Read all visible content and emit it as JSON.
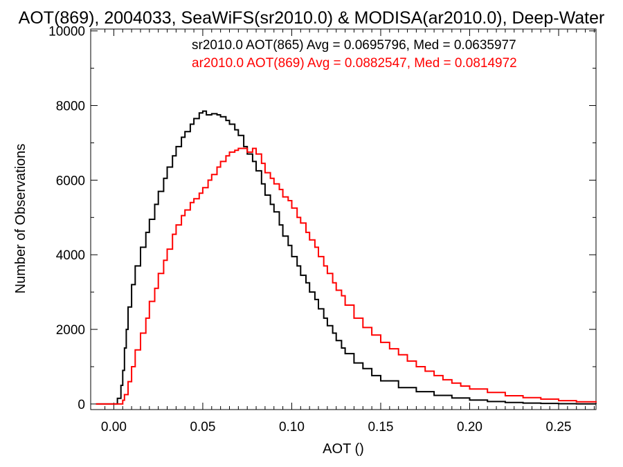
{
  "chart_data": {
    "type": "line",
    "title": "AOT(869), 2004033, SeaWiFS(sr2010.0) & MODISA(ar2010.0), Deep-Water",
    "xlabel": "AOT ()",
    "ylabel": "Number of Observations",
    "xlim": [
      -0.013,
      0.271
    ],
    "ylim": [
      -150,
      10050
    ],
    "xticks": [
      0.0,
      0.05,
      0.1,
      0.15,
      0.2,
      0.25
    ],
    "xtick_labels": [
      "0.00",
      "0.05",
      "0.10",
      "0.15",
      "0.20",
      "0.25"
    ],
    "yticks": [
      0,
      2000,
      4000,
      6000,
      8000,
      10000
    ],
    "ytick_labels": [
      "0",
      "2000",
      "4000",
      "6000",
      "8000",
      "10000"
    ],
    "grid": false,
    "legend_placement": "top-right",
    "series": [
      {
        "name": "sr2010.0 AOT(865) Avg = 0.0695796, Med = 0.0635977",
        "color": "#000000",
        "x": [
          -0.01,
          0.0,
          0.002,
          0.004,
          0.005,
          0.006,
          0.007,
          0.008,
          0.01,
          0.012,
          0.015,
          0.018,
          0.02,
          0.023,
          0.025,
          0.028,
          0.03,
          0.033,
          0.035,
          0.038,
          0.04,
          0.043,
          0.045,
          0.048,
          0.05,
          0.052,
          0.055,
          0.058,
          0.06,
          0.063,
          0.065,
          0.068,
          0.07,
          0.073,
          0.075,
          0.078,
          0.08,
          0.083,
          0.085,
          0.088,
          0.09,
          0.093,
          0.095,
          0.098,
          0.1,
          0.103,
          0.105,
          0.108,
          0.11,
          0.113,
          0.115,
          0.118,
          0.12,
          0.123,
          0.125,
          0.128,
          0.13,
          0.135,
          0.14,
          0.145,
          0.15,
          0.16,
          0.17,
          0.18,
          0.19,
          0.2,
          0.21,
          0.22,
          0.23,
          0.24,
          0.25,
          0.26,
          0.271
        ],
        "values": [
          0,
          0,
          150,
          500,
          900,
          1500,
          2000,
          2600,
          3200,
          3700,
          4200,
          4600,
          4950,
          5350,
          5700,
          6050,
          6350,
          6650,
          6900,
          7150,
          7300,
          7500,
          7650,
          7800,
          7850,
          7750,
          7780,
          7750,
          7700,
          7600,
          7500,
          7350,
          7200,
          6900,
          6700,
          6500,
          6250,
          5900,
          5600,
          5350,
          5150,
          4800,
          4500,
          4250,
          3950,
          3700,
          3450,
          3250,
          3000,
          2800,
          2550,
          2300,
          2100,
          1900,
          1700,
          1500,
          1350,
          1100,
          950,
          760,
          620,
          440,
          330,
          230,
          160,
          105,
          65,
          40,
          25,
          15,
          8,
          4,
          2
        ]
      },
      {
        "name": "ar2010.0 AOT(869) Avg = 0.0882547, Med = 0.0814972",
        "color": "#ff0000",
        "x": [
          -0.01,
          0.004,
          0.005,
          0.006,
          0.008,
          0.01,
          0.012,
          0.015,
          0.018,
          0.02,
          0.023,
          0.025,
          0.028,
          0.03,
          0.033,
          0.035,
          0.038,
          0.04,
          0.043,
          0.045,
          0.048,
          0.05,
          0.053,
          0.055,
          0.058,
          0.06,
          0.063,
          0.065,
          0.068,
          0.07,
          0.073,
          0.075,
          0.078,
          0.08,
          0.083,
          0.085,
          0.088,
          0.09,
          0.093,
          0.095,
          0.098,
          0.1,
          0.103,
          0.105,
          0.108,
          0.11,
          0.113,
          0.115,
          0.118,
          0.12,
          0.123,
          0.125,
          0.128,
          0.13,
          0.135,
          0.14,
          0.145,
          0.15,
          0.155,
          0.16,
          0.165,
          0.17,
          0.175,
          0.18,
          0.185,
          0.19,
          0.195,
          0.2,
          0.21,
          0.22,
          0.23,
          0.24,
          0.25,
          0.26,
          0.271
        ],
        "values": [
          0,
          0,
          100,
          250,
          600,
          1000,
          1450,
          1900,
          2300,
          2750,
          3100,
          3500,
          3850,
          4150,
          4550,
          4800,
          5050,
          5200,
          5400,
          5500,
          5650,
          5800,
          6000,
          6150,
          6350,
          6500,
          6650,
          6750,
          6800,
          6850,
          6850,
          6750,
          6850,
          6700,
          6450,
          6200,
          6050,
          5900,
          5750,
          5550,
          5450,
          5250,
          5000,
          4850,
          4600,
          4400,
          4200,
          3950,
          3700,
          3500,
          3250,
          3050,
          2900,
          2650,
          2300,
          2050,
          1850,
          1650,
          1480,
          1320,
          1150,
          1000,
          880,
          760,
          650,
          560,
          480,
          400,
          310,
          220,
          170,
          130,
          90,
          60,
          40
        ]
      }
    ]
  }
}
